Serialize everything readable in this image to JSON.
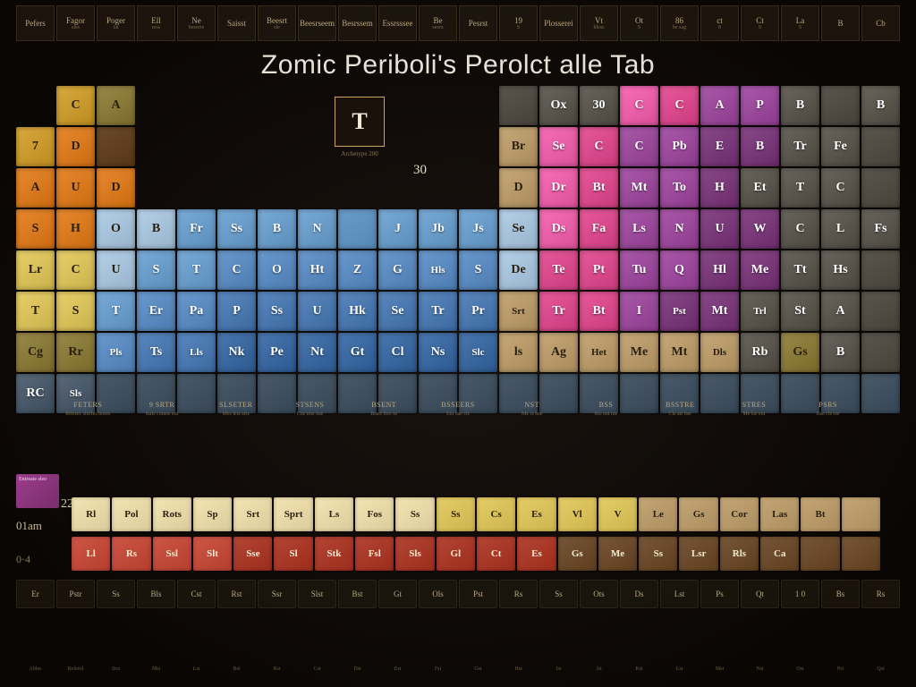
{
  "title": "Zomic Periboli's Perolct alle Tab",
  "legend": {
    "symbol": "T",
    "caption": "Archetype 200",
    "num": "30"
  },
  "side": {
    "purple_text": "Entreate sleo",
    "label1": "01am",
    "label2": "0·4",
    "num": "22"
  },
  "colors": {
    "green": "#3fa84a",
    "gold": "#c99a2e",
    "olive": "#8a7a3a",
    "orange": "#d97a20",
    "yellow": "#d8c05a",
    "blue1": "#6a9cc9",
    "blue2": "#5a8abf",
    "blue3": "#4a78af",
    "blue4": "#3a689f",
    "skyl": "#a6c2da",
    "grey": "#8a8680",
    "greyd": "#5a564e",
    "pinkh": "#e95fa8",
    "pink": "#d84a8c",
    "purpl": "#9b4a9b",
    "purpd": "#7a3a7a",
    "tan": "#b89a6a",
    "cream": "#e8d8a8",
    "red": "#c14a3a",
    "redd": "#a83828",
    "brown": "#6a4a2a",
    "slate": "#4a5a6a",
    "teal": "#3a7a7a",
    "black": "#1a1410"
  },
  "top_header": [
    "Pefers",
    "Fagor sles",
    "Poger fat",
    "Ell tess",
    "Ne besorre",
    "Saisst",
    "Beesrt sle",
    "Beesrseem",
    "Besrssem",
    "Essrsssee",
    "Be seem",
    "Pesrst",
    "19 S",
    "Plosserei",
    "Vt bless",
    "Ot S",
    "86 be sag",
    "ct 8",
    "Ct S",
    "La S",
    "B",
    "Cb"
  ],
  "rows": [
    [
      {
        "s": "",
        "c": "black"
      },
      {
        "s": "C",
        "c": "gold",
        "d": true
      },
      {
        "s": "A",
        "c": "olive",
        "d": true
      },
      {
        "s": "",
        "c": "black"
      },
      {
        "s": "",
        "c": "black"
      },
      {
        "s": "",
        "c": "black"
      },
      {
        "s": "",
        "c": "black"
      },
      {
        "s": "",
        "c": "black"
      },
      {
        "s": "",
        "c": "black"
      },
      {
        "s": "",
        "c": "black"
      },
      {
        "s": "",
        "c": "black"
      },
      {
        "s": "",
        "c": "black"
      },
      {
        "s": "",
        "c": "greyd"
      },
      {
        "s": "Ox",
        "c": "greyd"
      },
      {
        "s": "30",
        "c": "greyd"
      },
      {
        "s": "C",
        "c": "pinkh"
      },
      {
        "s": "C",
        "c": "pink"
      },
      {
        "s": "A",
        "c": "purpl"
      },
      {
        "s": "P",
        "c": "purpl"
      },
      {
        "s": "B",
        "c": "greyd"
      },
      {
        "s": "",
        "c": "greyd"
      },
      {
        "s": "B",
        "c": "greyd"
      }
    ],
    [
      {
        "s": "7",
        "c": "gold",
        "d": true
      },
      {
        "s": "D",
        "c": "orange",
        "d": true
      },
      {
        "s": "",
        "c": "brown"
      },
      {
        "s": "",
        "c": "black"
      },
      {
        "s": "",
        "c": "black"
      },
      {
        "s": "",
        "c": "black"
      },
      {
        "s": "",
        "c": "black"
      },
      {
        "s": "",
        "c": "black"
      },
      {
        "s": "",
        "c": "black"
      },
      {
        "s": "",
        "c": "black"
      },
      {
        "s": "",
        "c": "black"
      },
      {
        "s": "",
        "c": "black"
      },
      {
        "s": "Br",
        "c": "tan",
        "d": true
      },
      {
        "s": "Se",
        "c": "pinkh"
      },
      {
        "s": "C",
        "c": "pink"
      },
      {
        "s": "C",
        "c": "purpl"
      },
      {
        "s": "Pb",
        "c": "purpl"
      },
      {
        "s": "E",
        "c": "purpd"
      },
      {
        "s": "B",
        "c": "purpd"
      },
      {
        "s": "Tr",
        "c": "greyd"
      },
      {
        "s": "Fe",
        "c": "greyd"
      },
      {
        "s": "",
        "c": "greyd"
      }
    ],
    [
      {
        "s": "A",
        "c": "orange",
        "d": true
      },
      {
        "s": "U",
        "c": "orange",
        "d": true
      },
      {
        "s": "D",
        "c": "orange",
        "d": true
      },
      {
        "s": "",
        "c": "black"
      },
      {
        "s": "",
        "c": "black"
      },
      {
        "s": "",
        "c": "black"
      },
      {
        "s": "",
        "c": "black"
      },
      {
        "s": "",
        "c": "black"
      },
      {
        "s": "",
        "c": "black"
      },
      {
        "s": "",
        "c": "black"
      },
      {
        "s": "",
        "c": "black"
      },
      {
        "s": "",
        "c": "black"
      },
      {
        "s": "D",
        "c": "tan",
        "d": true
      },
      {
        "s": "Dr",
        "c": "pinkh"
      },
      {
        "s": "Bt",
        "c": "pink"
      },
      {
        "s": "Mt",
        "c": "purpl"
      },
      {
        "s": "To",
        "c": "purpl"
      },
      {
        "s": "H",
        "c": "purpd"
      },
      {
        "s": "Et",
        "c": "greyd"
      },
      {
        "s": "T",
        "c": "greyd"
      },
      {
        "s": "C",
        "c": "greyd"
      },
      {
        "s": "",
        "c": "greyd"
      }
    ],
    [
      {
        "s": "S",
        "c": "orange",
        "d": true
      },
      {
        "s": "H",
        "c": "orange",
        "d": true
      },
      {
        "s": "O",
        "c": "skyl",
        "d": true
      },
      {
        "s": "B",
        "c": "skyl",
        "d": true
      },
      {
        "s": "Fr",
        "c": "blue1"
      },
      {
        "s": "Ss",
        "c": "blue1"
      },
      {
        "s": "B",
        "c": "blue1"
      },
      {
        "s": "N",
        "c": "blue1"
      },
      {
        "s": "",
        "c": "blue1"
      },
      {
        "s": "J",
        "c": "blue1"
      },
      {
        "s": "Jb",
        "c": "blue1"
      },
      {
        "s": "Js",
        "c": "blue1"
      },
      {
        "s": "Se",
        "c": "skyl",
        "d": true
      },
      {
        "s": "Ds",
        "c": "pinkh"
      },
      {
        "s": "Fa",
        "c": "pink"
      },
      {
        "s": "Ls",
        "c": "purpl"
      },
      {
        "s": "N",
        "c": "purpl"
      },
      {
        "s": "U",
        "c": "purpd"
      },
      {
        "s": "W",
        "c": "purpd"
      },
      {
        "s": "C",
        "c": "greyd"
      },
      {
        "s": "L",
        "c": "greyd"
      },
      {
        "s": "Fs",
        "c": "greyd"
      }
    ],
    [
      {
        "s": "Lr",
        "c": "yellow",
        "d": true
      },
      {
        "s": "C",
        "c": "yellow",
        "d": true
      },
      {
        "s": "U",
        "c": "skyl",
        "d": true
      },
      {
        "s": "S",
        "c": "blue1"
      },
      {
        "s": "T",
        "c": "blue1"
      },
      {
        "s": "C",
        "c": "blue2"
      },
      {
        "s": "O",
        "c": "blue2"
      },
      {
        "s": "Ht",
        "c": "blue2"
      },
      {
        "s": "Z",
        "c": "blue2"
      },
      {
        "s": "G",
        "c": "blue2"
      },
      {
        "s": "Hls",
        "c": "blue2"
      },
      {
        "s": "S",
        "c": "blue2"
      },
      {
        "s": "De",
        "c": "skyl",
        "d": true
      },
      {
        "s": "Te",
        "c": "pink"
      },
      {
        "s": "Pt",
        "c": "pink"
      },
      {
        "s": "Tu",
        "c": "purpl"
      },
      {
        "s": "Q",
        "c": "purpl"
      },
      {
        "s": "Hl",
        "c": "purpd"
      },
      {
        "s": "Me",
        "c": "purpd"
      },
      {
        "s": "Tt",
        "c": "greyd"
      },
      {
        "s": "Hs",
        "c": "greyd"
      },
      {
        "s": "",
        "c": "greyd"
      }
    ],
    [
      {
        "s": "T",
        "c": "yellow",
        "d": true
      },
      {
        "s": "S",
        "c": "yellow",
        "d": true
      },
      {
        "s": "T",
        "c": "blue1"
      },
      {
        "s": "Er",
        "c": "blue2"
      },
      {
        "s": "Pa",
        "c": "blue2"
      },
      {
        "s": "P",
        "c": "blue3"
      },
      {
        "s": "Ss",
        "c": "blue3"
      },
      {
        "s": "U",
        "c": "blue3"
      },
      {
        "s": "Hk",
        "c": "blue3"
      },
      {
        "s": "Se",
        "c": "blue3"
      },
      {
        "s": "Tr",
        "c": "blue3"
      },
      {
        "s": "Pr",
        "c": "blue3"
      },
      {
        "s": "Srt",
        "c": "tan",
        "d": true
      },
      {
        "s": "Tr",
        "c": "pink"
      },
      {
        "s": "Bt",
        "c": "pink"
      },
      {
        "s": "I",
        "c": "purpl"
      },
      {
        "s": "Pst",
        "c": "purpd"
      },
      {
        "s": "Mt",
        "c": "purpd"
      },
      {
        "s": "Trl",
        "c": "greyd"
      },
      {
        "s": "St",
        "c": "greyd"
      },
      {
        "s": "A",
        "c": "greyd"
      },
      {
        "s": "",
        "c": "greyd"
      }
    ],
    [
      {
        "s": "Cg",
        "c": "olive",
        "d": true
      },
      {
        "s": "Rr",
        "c": "olive",
        "d": true
      },
      {
        "s": "Pls",
        "c": "blue2"
      },
      {
        "s": "Ts",
        "c": "blue3"
      },
      {
        "s": "Lls",
        "c": "blue3"
      },
      {
        "s": "Nk",
        "c": "blue4"
      },
      {
        "s": "Pe",
        "c": "blue4"
      },
      {
        "s": "Nt",
        "c": "blue4"
      },
      {
        "s": "Gt",
        "c": "blue4"
      },
      {
        "s": "Cl",
        "c": "blue4"
      },
      {
        "s": "Ns",
        "c": "blue4"
      },
      {
        "s": "Slc",
        "c": "blue4"
      },
      {
        "s": "ls",
        "c": "tan",
        "d": true
      },
      {
        "s": "Ag",
        "c": "tan",
        "d": true
      },
      {
        "s": "Het",
        "c": "tan",
        "d": true
      },
      {
        "s": "Me",
        "c": "tan",
        "d": true
      },
      {
        "s": "Mt",
        "c": "tan",
        "d": true
      },
      {
        "s": "Dls",
        "c": "tan",
        "d": true
      },
      {
        "s": "Rb",
        "c": "greyd"
      },
      {
        "s": "Gs",
        "c": "olive",
        "d": true
      },
      {
        "s": "B",
        "c": "greyd"
      },
      {
        "s": "",
        "c": "greyd"
      }
    ],
    [
      {
        "s": "RC",
        "c": "slate"
      },
      {
        "s": "Sls",
        "c": "slate"
      },
      {
        "s": "",
        "c": "slate"
      },
      {
        "s": "",
        "c": "slate"
      },
      {
        "s": "",
        "c": "slate"
      },
      {
        "s": "",
        "c": "slate"
      },
      {
        "s": "",
        "c": "slate"
      },
      {
        "s": "",
        "c": "slate"
      },
      {
        "s": "",
        "c": "slate"
      },
      {
        "s": "",
        "c": "slate"
      },
      {
        "s": "",
        "c": "slate"
      },
      {
        "s": "",
        "c": "slate"
      },
      {
        "s": "",
        "c": "slate"
      },
      {
        "s": "",
        "c": "slate"
      },
      {
        "s": "",
        "c": "slate"
      },
      {
        "s": "",
        "c": "slate"
      },
      {
        "s": "",
        "c": "slate"
      },
      {
        "s": "",
        "c": "slate"
      },
      {
        "s": "",
        "c": "slate"
      },
      {
        "s": "",
        "c": "slate"
      },
      {
        "s": "",
        "c": "slate"
      },
      {
        "s": "",
        "c": "slate"
      }
    ]
  ],
  "info_cols": [
    {
      "hd": "Feters",
      "t": "Retrsec shrrles boses"
    },
    {
      "hd": "9 Srtr",
      "t": "Rals comse ent"
    },
    {
      "hd": "Slseter",
      "t": "Mes lest atre"
    },
    {
      "hd": "Stsens",
      "t": "Cns tme bse"
    },
    {
      "hd": "Bsent",
      "t": "Bsert lore se"
    },
    {
      "hd": "Bsseers",
      "t": "Ent bse cls"
    },
    {
      "hd": "Nst",
      "t": "Me rs bse"
    },
    {
      "hd": "Bss",
      "t": "Rls ent me"
    },
    {
      "hd": "Bsstre",
      "t": "Cls atr bse"
    },
    {
      "hd": "Stres",
      "t": "Me lse ent"
    },
    {
      "hd": "Psrs",
      "t": "Bse cls rse"
    }
  ],
  "lanth": [
    {
      "s": "Rl",
      "c": "cream"
    },
    {
      "s": "Pol",
      "c": "cream"
    },
    {
      "s": "Rots",
      "c": "cream"
    },
    {
      "s": "Sp",
      "c": "cream"
    },
    {
      "s": "Srt",
      "c": "cream"
    },
    {
      "s": "Sprt",
      "c": "cream"
    },
    {
      "s": "Ls",
      "c": "cream"
    },
    {
      "s": "Fos",
      "c": "cream"
    },
    {
      "s": "Ss",
      "c": "cream"
    },
    {
      "s": "Ss",
      "c": "yellow"
    },
    {
      "s": "Cs",
      "c": "yellow"
    },
    {
      "s": "Es",
      "c": "yellow"
    },
    {
      "s": "Vl",
      "c": "yellow"
    },
    {
      "s": "V",
      "c": "yellow"
    },
    {
      "s": "Le",
      "c": "tan"
    },
    {
      "s": "Gs",
      "c": "tan"
    },
    {
      "s": "Cor",
      "c": "tan"
    },
    {
      "s": "Las",
      "c": "tan"
    },
    {
      "s": "Bt",
      "c": "tan"
    },
    {
      "s": "",
      "c": "tan"
    }
  ],
  "actin": [
    {
      "s": "Ll",
      "c": "red"
    },
    {
      "s": "Rs",
      "c": "red"
    },
    {
      "s": "Ssl",
      "c": "red"
    },
    {
      "s": "Slt",
      "c": "red"
    },
    {
      "s": "Sse",
      "c": "redd"
    },
    {
      "s": "Sl",
      "c": "redd"
    },
    {
      "s": "Stk",
      "c": "redd"
    },
    {
      "s": "Fsl",
      "c": "redd"
    },
    {
      "s": "Sls",
      "c": "redd"
    },
    {
      "s": "Gl",
      "c": "redd"
    },
    {
      "s": "Ct",
      "c": "redd"
    },
    {
      "s": "Es",
      "c": "redd"
    },
    {
      "s": "Gs",
      "c": "brown"
    },
    {
      "s": "Me",
      "c": "brown"
    },
    {
      "s": "Ss",
      "c": "brown"
    },
    {
      "s": "Lsr",
      "c": "brown"
    },
    {
      "s": "Rls",
      "c": "brown"
    },
    {
      "s": "Ca",
      "c": "brown"
    },
    {
      "s": "",
      "c": "brown"
    },
    {
      "s": "",
      "c": "brown"
    }
  ],
  "footer": [
    "Er",
    "Pstr",
    "Ss",
    "Bls",
    "Cst",
    "Rst",
    "Ssr",
    "Slst",
    "Bst",
    "Gt",
    "Ols",
    "Pst",
    "Rs",
    "Ss",
    "Ots",
    "Ds",
    "Lst",
    "Ps",
    "Qt",
    "1 0",
    "Bs",
    "Rs"
  ],
  "bottom_labels": [
    "Ables",
    "Releesl",
    "Srst",
    "Mst",
    "Lst",
    "Bst",
    "Rst",
    "Cst",
    "Dst",
    "Est",
    "Fst",
    "Gst",
    "Hst",
    "Ist",
    "Jst",
    "Kst",
    "Lst",
    "Mst",
    "Nst",
    "Ost",
    "Pst",
    "Qst"
  ]
}
